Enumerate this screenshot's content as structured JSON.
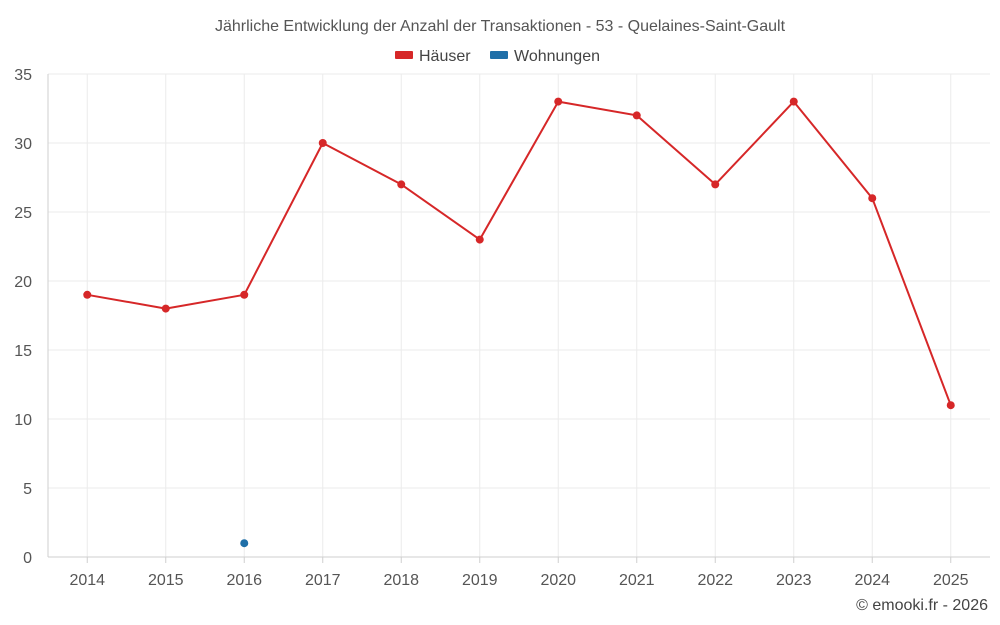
{
  "chart_data": {
    "type": "line",
    "title": "Jährliche Entwicklung der Anzahl der Transaktionen - 53 - Quelaines-Saint-Gault",
    "categories": [
      "2014",
      "2015",
      "2016",
      "2017",
      "2018",
      "2019",
      "2020",
      "2021",
      "2022",
      "2023",
      "2024",
      "2025"
    ],
    "series": [
      {
        "name": "Häuser",
        "color": "#d62728",
        "values": [
          19,
          18,
          19,
          30,
          27,
          23,
          33,
          32,
          27,
          33,
          26,
          11
        ]
      },
      {
        "name": "Wohnungen",
        "color": "#1f6fa8",
        "values": [
          null,
          null,
          1,
          null,
          null,
          null,
          null,
          null,
          null,
          null,
          null,
          null
        ]
      }
    ],
    "ylim": [
      0,
      35
    ],
    "yticks": [
      0,
      5,
      10,
      15,
      20,
      25,
      30,
      35
    ],
    "grid": true,
    "legend_position": "top-center"
  },
  "credit": "© emooki.fr - 2026"
}
